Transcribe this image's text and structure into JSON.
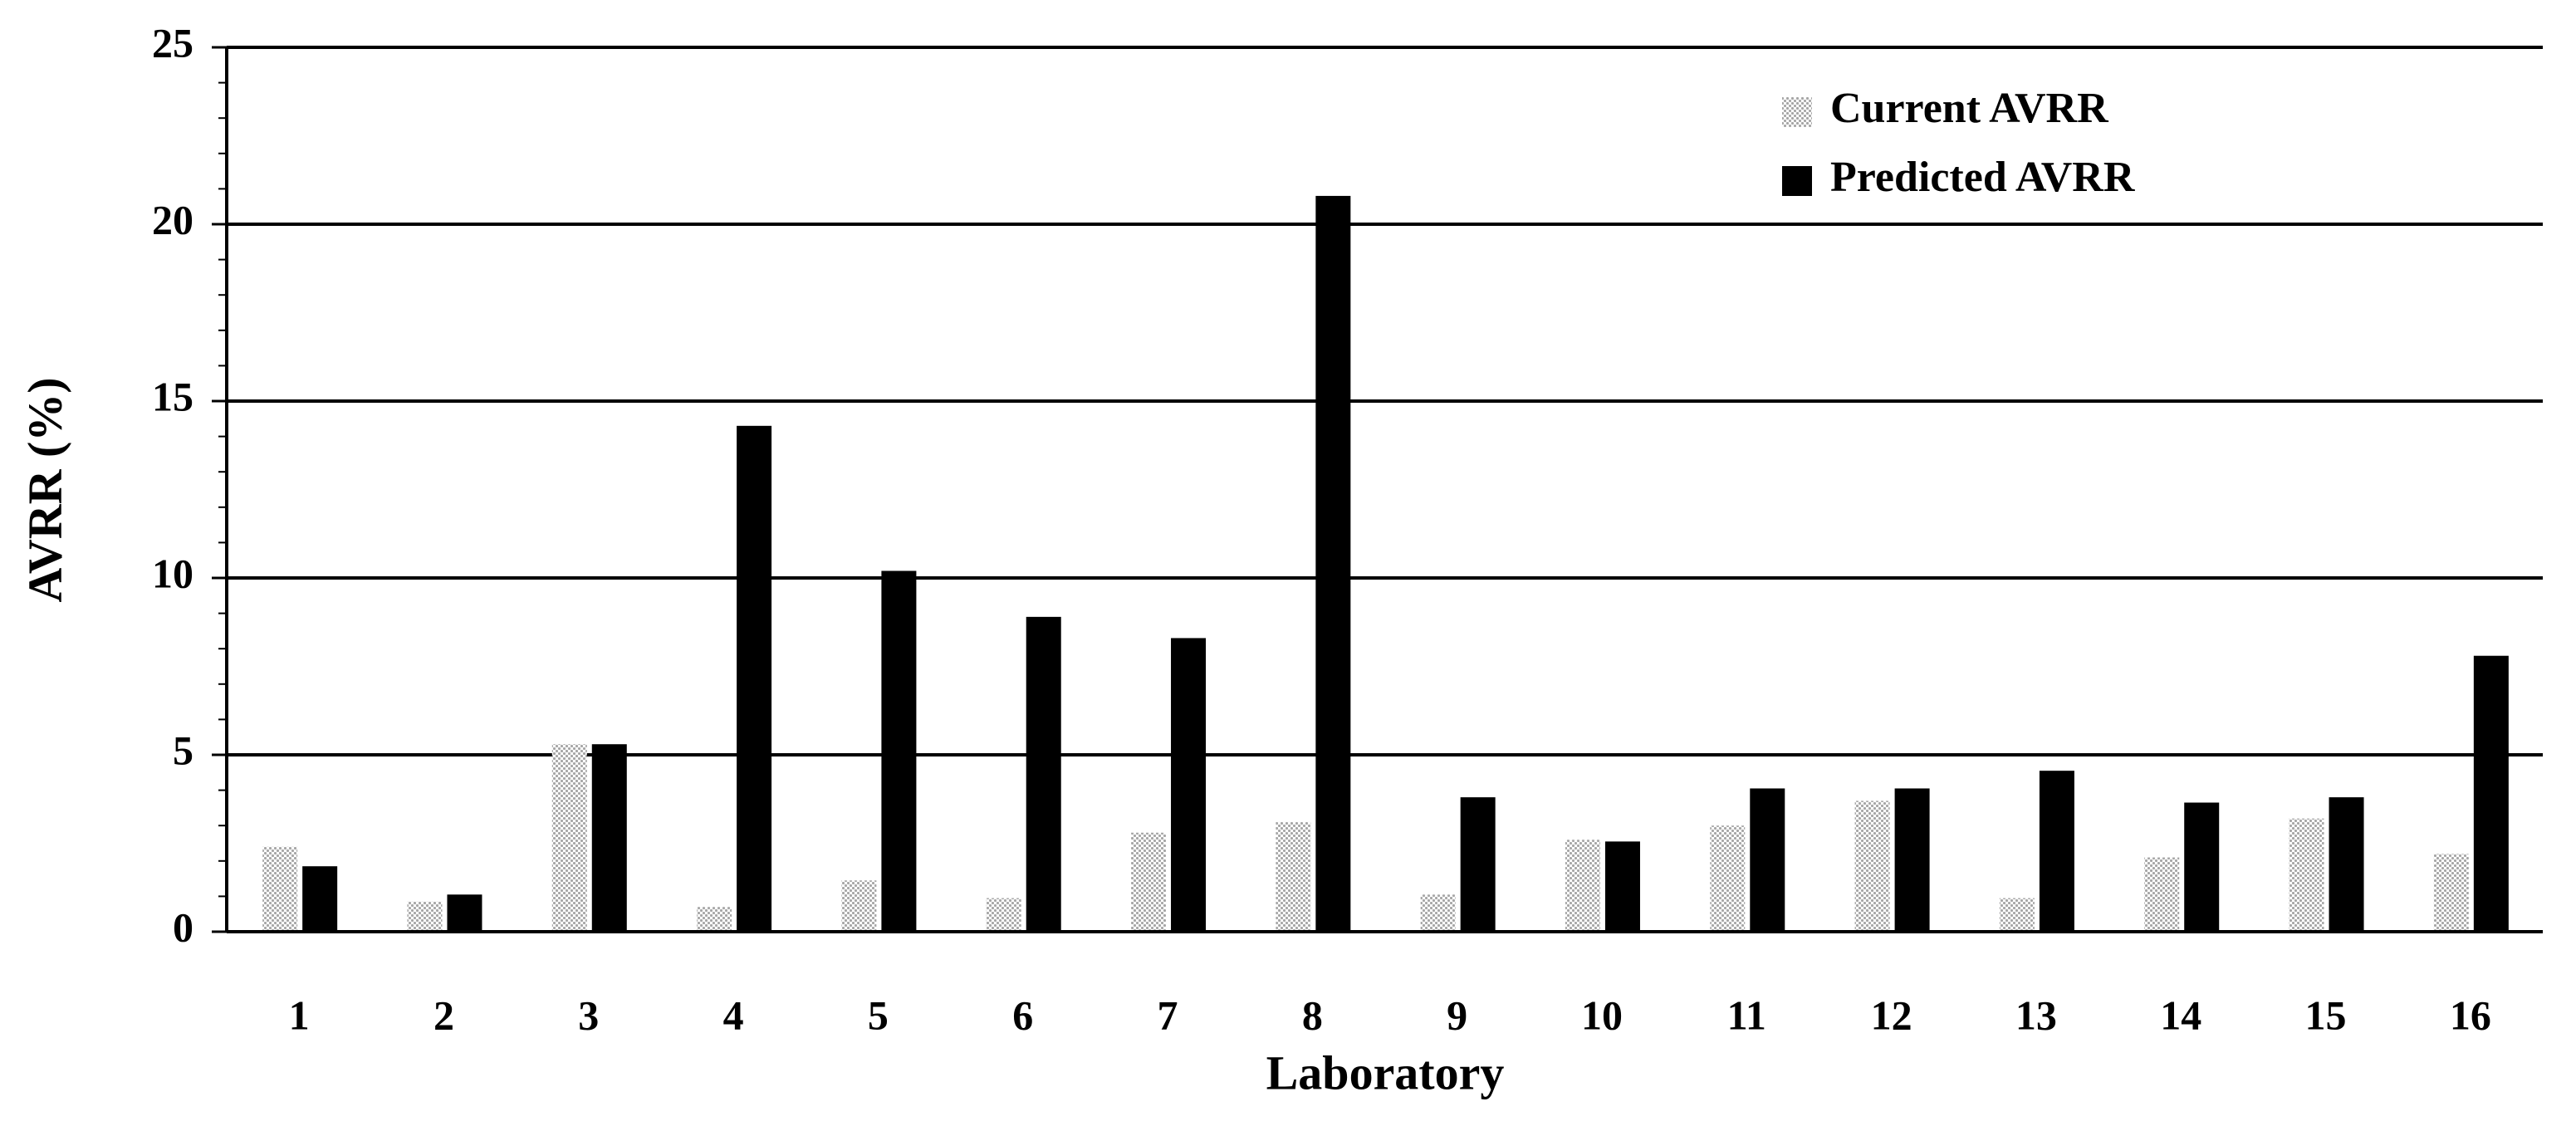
{
  "chart_data": {
    "type": "bar",
    "x_label": "Laboratory",
    "y_label": "AVRR (%)",
    "categories": [
      "1",
      "2",
      "3",
      "4",
      "5",
      "6",
      "7",
      "8",
      "9",
      "10",
      "11",
      "12",
      "13",
      "14",
      "15",
      "16"
    ],
    "series": [
      {
        "name": "Current AVRR",
        "color": "#a6a6a6",
        "pattern": "dotted",
        "values": [
          2.4,
          0.85,
          5.3,
          0.7,
          1.45,
          0.95,
          2.8,
          3.1,
          1.05,
          2.6,
          3.0,
          3.7,
          0.95,
          2.1,
          3.2,
          2.2
        ]
      },
      {
        "name": "Predicted AVRR",
        "color": "#000000",
        "values": [
          1.85,
          1.05,
          5.3,
          14.3,
          10.2,
          8.9,
          8.3,
          20.8,
          3.8,
          2.55,
          4.05,
          4.05,
          4.55,
          3.65,
          3.8,
          7.8
        ]
      }
    ],
    "ylim": [
      0,
      25
    ],
    "yticks": [
      0,
      5,
      10,
      15,
      20,
      25
    ],
    "y_minor_step": 1,
    "grid": true,
    "legend_position": "top-right"
  }
}
